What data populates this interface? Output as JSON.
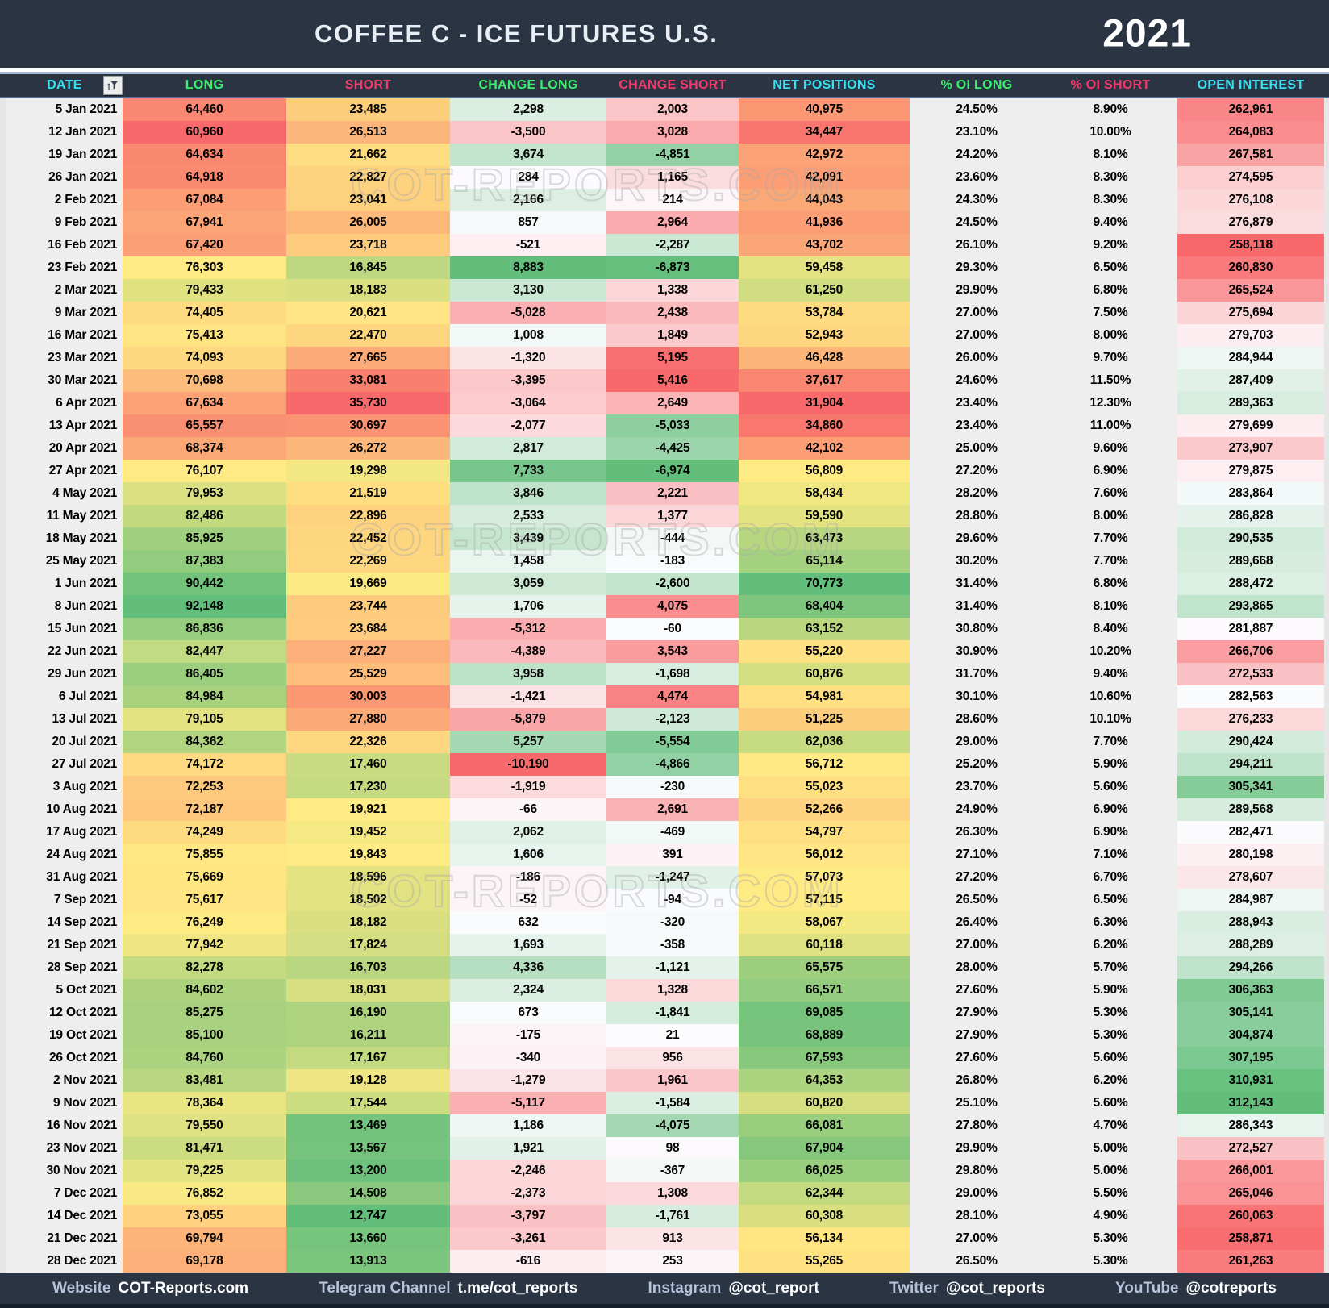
{
  "title_bar": {
    "title": "COFFEE C - ICE FUTURES U.S.",
    "year": "2021"
  },
  "watermark": "COT-REPORTS.COM",
  "colors": {
    "bar_bg": "#2A3442",
    "header_cyan": "#38E1F2",
    "header_green": "#3BF06E",
    "header_pink": "#F43A6C",
    "scale_red": "#F8696B",
    "scale_yellow": "#FFEB84",
    "scale_green": "#63BE7B",
    "scale_white": "#FCFCFF",
    "plain_cell_bg": "#EFEEEE"
  },
  "table": {
    "columns": [
      {
        "key": "date",
        "label": "DATE",
        "header_color": "cyan",
        "scale": "none",
        "has_filter": true
      },
      {
        "key": "long",
        "label": "LONG",
        "header_color": "green",
        "scale": "ryg"
      },
      {
        "key": "short",
        "label": "SHORT",
        "header_color": "pink",
        "scale": "gyr"
      },
      {
        "key": "change_long",
        "label": "CHANGE LONG",
        "header_color": "green",
        "scale": "rwg"
      },
      {
        "key": "change_short",
        "label": "CHANGE SHORT",
        "header_color": "pink",
        "scale": "gwr"
      },
      {
        "key": "net_positions",
        "label": "NET POSITIONS",
        "header_color": "cyan",
        "scale": "ryg"
      },
      {
        "key": "oi_long",
        "label": "% OI LONG",
        "header_color": "green",
        "scale": "none"
      },
      {
        "key": "oi_short",
        "label": "% OI SHORT",
        "header_color": "pink",
        "scale": "none"
      },
      {
        "key": "open_interest",
        "label": "OPEN INTEREST",
        "header_color": "cyan",
        "scale": "rwg"
      }
    ],
    "rows": [
      {
        "date": "5 Jan 2021",
        "long": "64,460",
        "short": "23,485",
        "change_long": "2,298",
        "change_short": "2,003",
        "net_positions": "40,975",
        "oi_long": "24.50%",
        "oi_short": "8.90%",
        "open_interest": "262,961"
      },
      {
        "date": "12 Jan 2021",
        "long": "60,960",
        "short": "26,513",
        "change_long": "-3,500",
        "change_short": "3,028",
        "net_positions": "34,447",
        "oi_long": "23.10%",
        "oi_short": "10.00%",
        "open_interest": "264,083"
      },
      {
        "date": "19 Jan 2021",
        "long": "64,634",
        "short": "21,662",
        "change_long": "3,674",
        "change_short": "-4,851",
        "net_positions": "42,972",
        "oi_long": "24.20%",
        "oi_short": "8.10%",
        "open_interest": "267,581"
      },
      {
        "date": "26 Jan 2021",
        "long": "64,918",
        "short": "22,827",
        "change_long": "284",
        "change_short": "1,165",
        "net_positions": "42,091",
        "oi_long": "23.60%",
        "oi_short": "8.30%",
        "open_interest": "274,595"
      },
      {
        "date": "2 Feb 2021",
        "long": "67,084",
        "short": "23,041",
        "change_long": "2,166",
        "change_short": "214",
        "net_positions": "44,043",
        "oi_long": "24.30%",
        "oi_short": "8.30%",
        "open_interest": "276,108"
      },
      {
        "date": "9 Feb 2021",
        "long": "67,941",
        "short": "26,005",
        "change_long": "857",
        "change_short": "2,964",
        "net_positions": "41,936",
        "oi_long": "24.50%",
        "oi_short": "9.40%",
        "open_interest": "276,879"
      },
      {
        "date": "16 Feb 2021",
        "long": "67,420",
        "short": "23,718",
        "change_long": "-521",
        "change_short": "-2,287",
        "net_positions": "43,702",
        "oi_long": "26.10%",
        "oi_short": "9.20%",
        "open_interest": "258,118"
      },
      {
        "date": "23 Feb 2021",
        "long": "76,303",
        "short": "16,845",
        "change_long": "8,883",
        "change_short": "-6,873",
        "net_positions": "59,458",
        "oi_long": "29.30%",
        "oi_short": "6.50%",
        "open_interest": "260,830"
      },
      {
        "date": "2 Mar 2021",
        "long": "79,433",
        "short": "18,183",
        "change_long": "3,130",
        "change_short": "1,338",
        "net_positions": "61,250",
        "oi_long": "29.90%",
        "oi_short": "6.80%",
        "open_interest": "265,524"
      },
      {
        "date": "9 Mar 2021",
        "long": "74,405",
        "short": "20,621",
        "change_long": "-5,028",
        "change_short": "2,438",
        "net_positions": "53,784",
        "oi_long": "27.00%",
        "oi_short": "7.50%",
        "open_interest": "275,694"
      },
      {
        "date": "16 Mar 2021",
        "long": "75,413",
        "short": "22,470",
        "change_long": "1,008",
        "change_short": "1,849",
        "net_positions": "52,943",
        "oi_long": "27.00%",
        "oi_short": "8.00%",
        "open_interest": "279,703"
      },
      {
        "date": "23 Mar 2021",
        "long": "74,093",
        "short": "27,665",
        "change_long": "-1,320",
        "change_short": "5,195",
        "net_positions": "46,428",
        "oi_long": "26.00%",
        "oi_short": "9.70%",
        "open_interest": "284,944"
      },
      {
        "date": "30 Mar 2021",
        "long": "70,698",
        "short": "33,081",
        "change_long": "-3,395",
        "change_short": "5,416",
        "net_positions": "37,617",
        "oi_long": "24.60%",
        "oi_short": "11.50%",
        "open_interest": "287,409"
      },
      {
        "date": "6 Apr 2021",
        "long": "67,634",
        "short": "35,730",
        "change_long": "-3,064",
        "change_short": "2,649",
        "net_positions": "31,904",
        "oi_long": "23.40%",
        "oi_short": "12.30%",
        "open_interest": "289,363"
      },
      {
        "date": "13 Apr 2021",
        "long": "65,557",
        "short": "30,697",
        "change_long": "-2,077",
        "change_short": "-5,033",
        "net_positions": "34,860",
        "oi_long": "23.40%",
        "oi_short": "11.00%",
        "open_interest": "279,699"
      },
      {
        "date": "20 Apr 2021",
        "long": "68,374",
        "short": "26,272",
        "change_long": "2,817",
        "change_short": "-4,425",
        "net_positions": "42,102",
        "oi_long": "25.00%",
        "oi_short": "9.60%",
        "open_interest": "273,907"
      },
      {
        "date": "27 Apr 2021",
        "long": "76,107",
        "short": "19,298",
        "change_long": "7,733",
        "change_short": "-6,974",
        "net_positions": "56,809",
        "oi_long": "27.20%",
        "oi_short": "6.90%",
        "open_interest": "279,875"
      },
      {
        "date": "4 May 2021",
        "long": "79,953",
        "short": "21,519",
        "change_long": "3,846",
        "change_short": "2,221",
        "net_positions": "58,434",
        "oi_long": "28.20%",
        "oi_short": "7.60%",
        "open_interest": "283,864"
      },
      {
        "date": "11 May 2021",
        "long": "82,486",
        "short": "22,896",
        "change_long": "2,533",
        "change_short": "1,377",
        "net_positions": "59,590",
        "oi_long": "28.80%",
        "oi_short": "8.00%",
        "open_interest": "286,828"
      },
      {
        "date": "18 May 2021",
        "long": "85,925",
        "short": "22,452",
        "change_long": "3,439",
        "change_short": "-444",
        "net_positions": "63,473",
        "oi_long": "29.60%",
        "oi_short": "7.70%",
        "open_interest": "290,535"
      },
      {
        "date": "25 May 2021",
        "long": "87,383",
        "short": "22,269",
        "change_long": "1,458",
        "change_short": "-183",
        "net_positions": "65,114",
        "oi_long": "30.20%",
        "oi_short": "7.70%",
        "open_interest": "289,668"
      },
      {
        "date": "1 Jun 2021",
        "long": "90,442",
        "short": "19,669",
        "change_long": "3,059",
        "change_short": "-2,600",
        "net_positions": "70,773",
        "oi_long": "31.40%",
        "oi_short": "6.80%",
        "open_interest": "288,472"
      },
      {
        "date": "8 Jun 2021",
        "long": "92,148",
        "short": "23,744",
        "change_long": "1,706",
        "change_short": "4,075",
        "net_positions": "68,404",
        "oi_long": "31.40%",
        "oi_short": "8.10%",
        "open_interest": "293,865"
      },
      {
        "date": "15 Jun 2021",
        "long": "86,836",
        "short": "23,684",
        "change_long": "-5,312",
        "change_short": "-60",
        "net_positions": "63,152",
        "oi_long": "30.80%",
        "oi_short": "8.40%",
        "open_interest": "281,887"
      },
      {
        "date": "22 Jun 2021",
        "long": "82,447",
        "short": "27,227",
        "change_long": "-4,389",
        "change_short": "3,543",
        "net_positions": "55,220",
        "oi_long": "30.90%",
        "oi_short": "10.20%",
        "open_interest": "266,706"
      },
      {
        "date": "29 Jun 2021",
        "long": "86,405",
        "short": "25,529",
        "change_long": "3,958",
        "change_short": "-1,698",
        "net_positions": "60,876",
        "oi_long": "31.70%",
        "oi_short": "9.40%",
        "open_interest": "272,533"
      },
      {
        "date": "6 Jul 2021",
        "long": "84,984",
        "short": "30,003",
        "change_long": "-1,421",
        "change_short": "4,474",
        "net_positions": "54,981",
        "oi_long": "30.10%",
        "oi_short": "10.60%",
        "open_interest": "282,563"
      },
      {
        "date": "13 Jul 2021",
        "long": "79,105",
        "short": "27,880",
        "change_long": "-5,879",
        "change_short": "-2,123",
        "net_positions": "51,225",
        "oi_long": "28.60%",
        "oi_short": "10.10%",
        "open_interest": "276,233"
      },
      {
        "date": "20 Jul 2021",
        "long": "84,362",
        "short": "22,326",
        "change_long": "5,257",
        "change_short": "-5,554",
        "net_positions": "62,036",
        "oi_long": "29.00%",
        "oi_short": "7.70%",
        "open_interest": "290,424"
      },
      {
        "date": "27 Jul 2021",
        "long": "74,172",
        "short": "17,460",
        "change_long": "-10,190",
        "change_short": "-4,866",
        "net_positions": "56,712",
        "oi_long": "25.20%",
        "oi_short": "5.90%",
        "open_interest": "294,211"
      },
      {
        "date": "3 Aug 2021",
        "long": "72,253",
        "short": "17,230",
        "change_long": "-1,919",
        "change_short": "-230",
        "net_positions": "55,023",
        "oi_long": "23.70%",
        "oi_short": "5.60%",
        "open_interest": "305,341"
      },
      {
        "date": "10 Aug 2021",
        "long": "72,187",
        "short": "19,921",
        "change_long": "-66",
        "change_short": "2,691",
        "net_positions": "52,266",
        "oi_long": "24.90%",
        "oi_short": "6.90%",
        "open_interest": "289,568"
      },
      {
        "date": "17 Aug 2021",
        "long": "74,249",
        "short": "19,452",
        "change_long": "2,062",
        "change_short": "-469",
        "net_positions": "54,797",
        "oi_long": "26.30%",
        "oi_short": "6.90%",
        "open_interest": "282,471"
      },
      {
        "date": "24 Aug 2021",
        "long": "75,855",
        "short": "19,843",
        "change_long": "1,606",
        "change_short": "391",
        "net_positions": "56,012",
        "oi_long": "27.10%",
        "oi_short": "7.10%",
        "open_interest": "280,198"
      },
      {
        "date": "31 Aug 2021",
        "long": "75,669",
        "short": "18,596",
        "change_long": "-186",
        "change_short": "-1,247",
        "net_positions": "57,073",
        "oi_long": "27.20%",
        "oi_short": "6.70%",
        "open_interest": "278,607"
      },
      {
        "date": "7 Sep 2021",
        "long": "75,617",
        "short": "18,502",
        "change_long": "-52",
        "change_short": "-94",
        "net_positions": "57,115",
        "oi_long": "26.50%",
        "oi_short": "6.50%",
        "open_interest": "284,987"
      },
      {
        "date": "14 Sep 2021",
        "long": "76,249",
        "short": "18,182",
        "change_long": "632",
        "change_short": "-320",
        "net_positions": "58,067",
        "oi_long": "26.40%",
        "oi_short": "6.30%",
        "open_interest": "288,943"
      },
      {
        "date": "21 Sep 2021",
        "long": "77,942",
        "short": "17,824",
        "change_long": "1,693",
        "change_short": "-358",
        "net_positions": "60,118",
        "oi_long": "27.00%",
        "oi_short": "6.20%",
        "open_interest": "288,289"
      },
      {
        "date": "28 Sep 2021",
        "long": "82,278",
        "short": "16,703",
        "change_long": "4,336",
        "change_short": "-1,121",
        "net_positions": "65,575",
        "oi_long": "28.00%",
        "oi_short": "5.70%",
        "open_interest": "294,266"
      },
      {
        "date": "5 Oct 2021",
        "long": "84,602",
        "short": "18,031",
        "change_long": "2,324",
        "change_short": "1,328",
        "net_positions": "66,571",
        "oi_long": "27.60%",
        "oi_short": "5.90%",
        "open_interest": "306,363"
      },
      {
        "date": "12 Oct 2021",
        "long": "85,275",
        "short": "16,190",
        "change_long": "673",
        "change_short": "-1,841",
        "net_positions": "69,085",
        "oi_long": "27.90%",
        "oi_short": "5.30%",
        "open_interest": "305,141"
      },
      {
        "date": "19 Oct 2021",
        "long": "85,100",
        "short": "16,211",
        "change_long": "-175",
        "change_short": "21",
        "net_positions": "68,889",
        "oi_long": "27.90%",
        "oi_short": "5.30%",
        "open_interest": "304,874"
      },
      {
        "date": "26 Oct 2021",
        "long": "84,760",
        "short": "17,167",
        "change_long": "-340",
        "change_short": "956",
        "net_positions": "67,593",
        "oi_long": "27.60%",
        "oi_short": "5.60%",
        "open_interest": "307,195"
      },
      {
        "date": "2 Nov 2021",
        "long": "83,481",
        "short": "19,128",
        "change_long": "-1,279",
        "change_short": "1,961",
        "net_positions": "64,353",
        "oi_long": "26.80%",
        "oi_short": "6.20%",
        "open_interest": "310,931"
      },
      {
        "date": "9 Nov 2021",
        "long": "78,364",
        "short": "17,544",
        "change_long": "-5,117",
        "change_short": "-1,584",
        "net_positions": "60,820",
        "oi_long": "25.10%",
        "oi_short": "5.60%",
        "open_interest": "312,143"
      },
      {
        "date": "16 Nov 2021",
        "long": "79,550",
        "short": "13,469",
        "change_long": "1,186",
        "change_short": "-4,075",
        "net_positions": "66,081",
        "oi_long": "27.80%",
        "oi_short": "4.70%",
        "open_interest": "286,343"
      },
      {
        "date": "23 Nov 2021",
        "long": "81,471",
        "short": "13,567",
        "change_long": "1,921",
        "change_short": "98",
        "net_positions": "67,904",
        "oi_long": "29.90%",
        "oi_short": "5.00%",
        "open_interest": "272,527"
      },
      {
        "date": "30 Nov 2021",
        "long": "79,225",
        "short": "13,200",
        "change_long": "-2,246",
        "change_short": "-367",
        "net_positions": "66,025",
        "oi_long": "29.80%",
        "oi_short": "5.00%",
        "open_interest": "266,001"
      },
      {
        "date": "7 Dec 2021",
        "long": "76,852",
        "short": "14,508",
        "change_long": "-2,373",
        "change_short": "1,308",
        "net_positions": "62,344",
        "oi_long": "29.00%",
        "oi_short": "5.50%",
        "open_interest": "265,046"
      },
      {
        "date": "14 Dec 2021",
        "long": "73,055",
        "short": "12,747",
        "change_long": "-3,797",
        "change_short": "-1,761",
        "net_positions": "60,308",
        "oi_long": "28.10%",
        "oi_short": "4.90%",
        "open_interest": "260,063"
      },
      {
        "date": "21 Dec 2021",
        "long": "69,794",
        "short": "13,660",
        "change_long": "-3,261",
        "change_short": "913",
        "net_positions": "56,134",
        "oi_long": "27.00%",
        "oi_short": "5.30%",
        "open_interest": "258,871"
      },
      {
        "date": "28 Dec 2021",
        "long": "69,178",
        "short": "13,913",
        "change_long": "-616",
        "change_short": "253",
        "net_positions": "55,265",
        "oi_long": "26.50%",
        "oi_short": "5.30%",
        "open_interest": "261,263"
      }
    ]
  },
  "footer": {
    "items": [
      {
        "label": "Website",
        "value": "COT-Reports.com"
      },
      {
        "label": "Telegram Channel",
        "value": "t.me/cot_reports"
      },
      {
        "label": "Instagram",
        "value": "@cot_report"
      },
      {
        "label": "Twitter",
        "value": "@cot_reports"
      },
      {
        "label": "YouTube",
        "value": "@cotreports"
      }
    ]
  }
}
